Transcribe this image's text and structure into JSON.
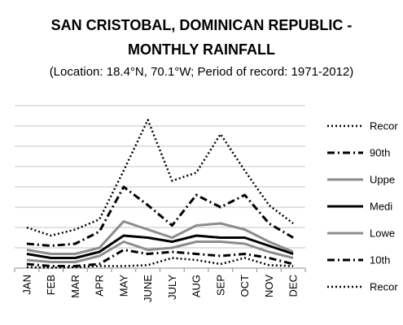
{
  "chart_data": {
    "type": "line",
    "title_lines": [
      "SAN CRISTOBAL, DOMINICAN REPUBLIC -",
      "MONTHLY RAINFALL"
    ],
    "subtitle": "(Location: 18.4°N, 70.1°W; Period of record: 1971-2012)",
    "xlabel": "",
    "ylabel": "",
    "categories": [
      "JAN",
      "FEB",
      "MAR",
      "APR",
      "MAY",
      "JUNE",
      "JULY",
      "AUG",
      "SEP",
      "OCT",
      "NOV",
      "DEC"
    ],
    "ylim": [
      0,
      8
    ],
    "grid": true,
    "legend_position": "right",
    "series": [
      {
        "name": "Recor",
        "style": "dotted",
        "color": "#000000",
        "values": [
          2.0,
          1.6,
          1.9,
          2.4,
          4.8,
          7.3,
          4.3,
          4.7,
          6.6,
          4.8,
          3.1,
          2.2
        ]
      },
      {
        "name": "90th",
        "style": "dashdot",
        "color": "#000000",
        "values": [
          1.2,
          1.1,
          1.2,
          1.8,
          4.0,
          3.1,
          2.1,
          3.6,
          3.0,
          3.6,
          2.2,
          1.5
        ]
      },
      {
        "name": "Uppe",
        "style": "solid",
        "color": "#8c8c8c",
        "values": [
          0.9,
          0.7,
          0.7,
          1.0,
          2.3,
          1.9,
          1.5,
          2.1,
          2.2,
          1.9,
          1.3,
          0.8
        ]
      },
      {
        "name": "Medi",
        "style": "solid",
        "color": "#000000",
        "values": [
          0.7,
          0.5,
          0.5,
          0.8,
          1.6,
          1.5,
          1.3,
          1.6,
          1.5,
          1.5,
          1.1,
          0.7
        ]
      },
      {
        "name": "Lowe",
        "style": "solid",
        "color": "#8c8c8c",
        "values": [
          0.4,
          0.3,
          0.3,
          0.6,
          1.3,
          0.9,
          1.0,
          1.3,
          1.3,
          1.2,
          0.8,
          0.5
        ]
      },
      {
        "name": "10th",
        "style": "dashdot",
        "color": "#000000",
        "values": [
          0.2,
          0.1,
          0.1,
          0.2,
          0.9,
          0.7,
          0.8,
          0.7,
          0.6,
          0.7,
          0.5,
          0.2
        ]
      },
      {
        "name": "Recor",
        "style": "dotted",
        "color": "#000000",
        "values": [
          0.05,
          0.02,
          0.05,
          0.1,
          0.1,
          0.15,
          0.5,
          0.4,
          0.2,
          0.5,
          0.15,
          0.1
        ]
      }
    ]
  }
}
